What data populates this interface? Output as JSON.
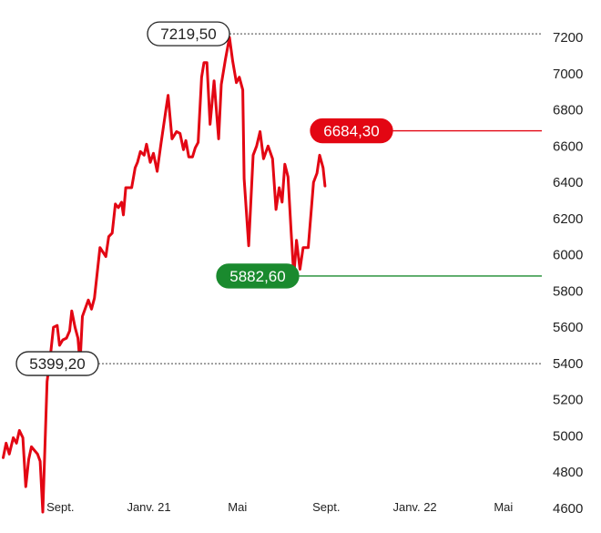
{
  "chart_data": {
    "type": "line",
    "title": "",
    "xlabel": "",
    "ylabel": "",
    "ylim": [
      4600,
      7300
    ],
    "yticks": [
      4600,
      4800,
      5000,
      5200,
      5400,
      5600,
      5800,
      6000,
      6200,
      6400,
      6600,
      6800,
      7000,
      7200
    ],
    "xticks": [
      {
        "x": 2020.667,
        "label": "Sept."
      },
      {
        "x": 2021.0,
        "label": "Janv. 21"
      },
      {
        "x": 2021.333,
        "label": "Mai"
      },
      {
        "x": 2021.667,
        "label": "Sept."
      },
      {
        "x": 2022.0,
        "label": "Janv. 22"
      },
      {
        "x": 2022.333,
        "label": "Mai"
      }
    ],
    "xlim": [
      2020.44,
      2022.7
    ],
    "series": [
      {
        "color": "#e30613",
        "points": [
          [
            2020.452,
            4880
          ],
          [
            2020.463,
            4960
          ],
          [
            2020.475,
            4900
          ],
          [
            2020.49,
            4990
          ],
          [
            2020.502,
            4960
          ],
          [
            2020.513,
            5030
          ],
          [
            2020.526,
            4990
          ],
          [
            2020.537,
            4720
          ],
          [
            2020.548,
            4870
          ],
          [
            2020.558,
            4940
          ],
          [
            2020.581,
            4900
          ],
          [
            2020.591,
            4860
          ],
          [
            2020.601,
            4580
          ],
          [
            2020.617,
            5300
          ],
          [
            2020.63,
            5450
          ],
          [
            2020.641,
            5600
          ],
          [
            2020.655,
            5610
          ],
          [
            2020.664,
            5500
          ],
          [
            2020.676,
            5530
          ],
          [
            2020.69,
            5540
          ],
          [
            2020.702,
            5580
          ],
          [
            2020.71,
            5690
          ],
          [
            2020.722,
            5600
          ],
          [
            2020.733,
            5540
          ],
          [
            2020.741,
            5400
          ],
          [
            2020.75,
            5660
          ],
          [
            2020.772,
            5750
          ],
          [
            2020.784,
            5700
          ],
          [
            2020.795,
            5760
          ],
          [
            2020.816,
            6040
          ],
          [
            2020.838,
            5990
          ],
          [
            2020.849,
            6100
          ],
          [
            2020.862,
            6120
          ],
          [
            2020.874,
            6280
          ],
          [
            2020.885,
            6260
          ],
          [
            2020.897,
            6290
          ],
          [
            2020.904,
            6220
          ],
          [
            2020.913,
            6370
          ],
          [
            2020.935,
            6370
          ],
          [
            2020.948,
            6480
          ],
          [
            2020.957,
            6510
          ],
          [
            2020.968,
            6570
          ],
          [
            2020.982,
            6550
          ],
          [
            2020.991,
            6610
          ],
          [
            2021.005,
            6510
          ],
          [
            2021.017,
            6560
          ],
          [
            2021.031,
            6460
          ],
          [
            2021.045,
            6610
          ],
          [
            2021.064,
            6800
          ],
          [
            2021.072,
            6880
          ],
          [
            2021.087,
            6640
          ],
          [
            2021.104,
            6680
          ],
          [
            2021.117,
            6670
          ],
          [
            2021.13,
            6580
          ],
          [
            2021.139,
            6630
          ],
          [
            2021.15,
            6540
          ],
          [
            2021.164,
            6540
          ],
          [
            2021.174,
            6590
          ],
          [
            2021.185,
            6620
          ],
          [
            2021.198,
            6980
          ],
          [
            2021.207,
            7060
          ],
          [
            2021.218,
            7060
          ],
          [
            2021.23,
            6720
          ],
          [
            2021.245,
            6960
          ],
          [
            2021.262,
            6640
          ],
          [
            2021.272,
            6940
          ],
          [
            2021.288,
            7080
          ],
          [
            2021.303,
            7200
          ],
          [
            2021.315,
            7070
          ],
          [
            2021.329,
            6950
          ],
          [
            2021.34,
            6980
          ],
          [
            2021.353,
            6910
          ],
          [
            2021.358,
            6420
          ],
          [
            2021.375,
            6050
          ],
          [
            2021.392,
            6550
          ],
          [
            2021.405,
            6600
          ],
          [
            2021.418,
            6680
          ],
          [
            2021.431,
            6530
          ],
          [
            2021.448,
            6600
          ],
          [
            2021.465,
            6530
          ],
          [
            2021.478,
            6250
          ],
          [
            2021.49,
            6370
          ],
          [
            2021.501,
            6290
          ],
          [
            2021.511,
            6500
          ],
          [
            2021.523,
            6430
          ],
          [
            2021.535,
            6120
          ],
          [
            2021.545,
            5880
          ],
          [
            2021.555,
            6080
          ],
          [
            2021.568,
            5920
          ],
          [
            2021.58,
            6040
          ],
          [
            2021.599,
            6040
          ],
          [
            2021.619,
            6400
          ],
          [
            2021.632,
            6450
          ],
          [
            2021.642,
            6550
          ],
          [
            2021.655,
            6480
          ],
          [
            2021.662,
            6380
          ]
        ]
      }
    ],
    "annotations": [
      {
        "value": 7219.5,
        "text": "7219,50",
        "style": "outline",
        "color": "#222222",
        "line": "dotted"
      },
      {
        "value": 6684.3,
        "text": "6684,30",
        "style": "filled",
        "color": "#e30613",
        "line": "solid"
      },
      {
        "value": 5882.6,
        "text": "5882,60",
        "style": "filled",
        "color": "#1a8a2e",
        "line": "solid"
      },
      {
        "value": 5399.2,
        "text": "5399,20",
        "style": "outline",
        "color": "#222222",
        "line": "dotted"
      }
    ],
    "grid": false,
    "legend": "none"
  }
}
